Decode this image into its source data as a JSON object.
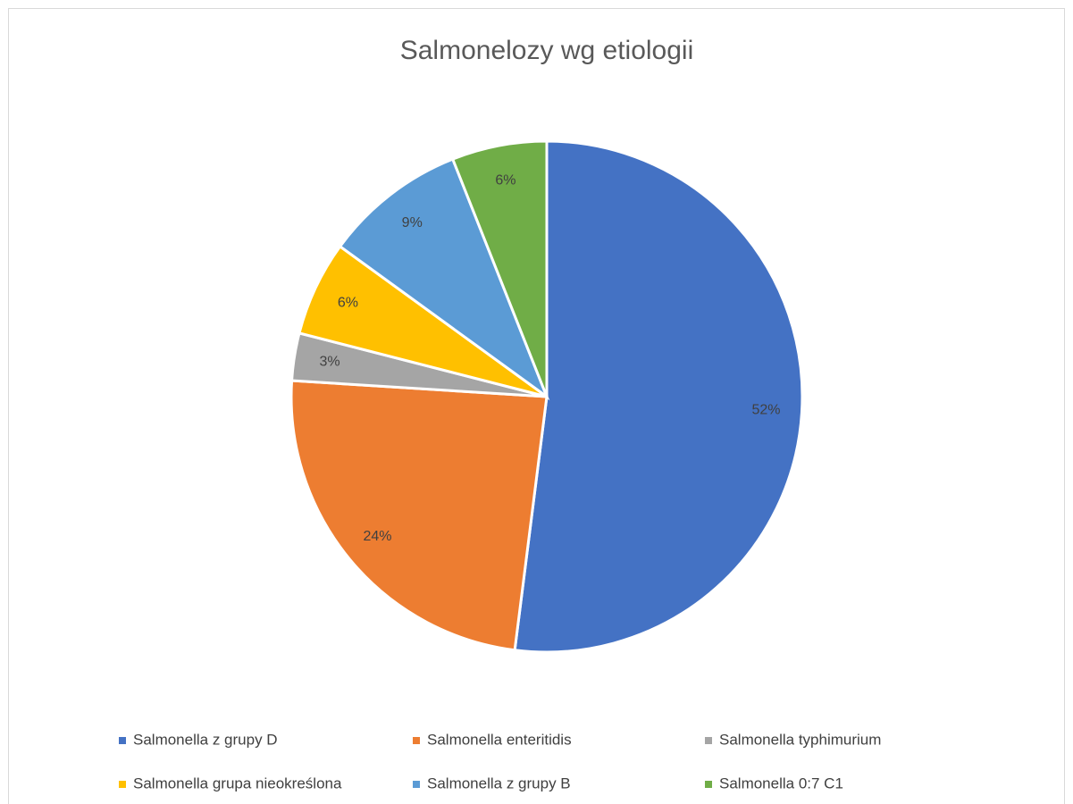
{
  "chart_data": {
    "type": "pie",
    "title": "Salmonelozy wg etiologii",
    "categories": [
      "Salmonella z grupy D",
      "Salmonella enteritidis",
      "Salmonella typhimurium",
      "Salmonella grupa nieokreślona",
      "Salmonella z grupy B",
      "Salmonella 0:7 C1"
    ],
    "values": [
      52,
      24,
      3,
      6,
      9,
      6
    ],
    "value_labels": [
      "52%",
      "24%",
      "3%",
      "6%",
      "9%",
      "6%"
    ],
    "colors": [
      "#4472c4",
      "#ed7d31",
      "#a5a5a5",
      "#ffc000",
      "#5b9bd5",
      "#70ad47"
    ],
    "legend": "bottom"
  }
}
